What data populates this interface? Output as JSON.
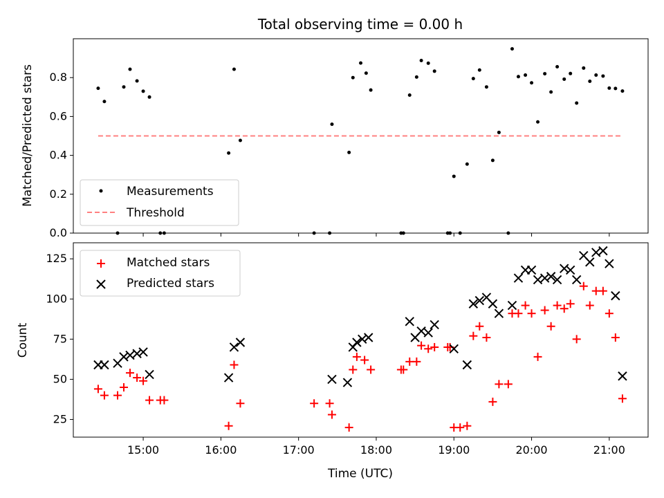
{
  "chart_data": [
    {
      "type": "scatter",
      "title": "Total observing time = 0.00 h",
      "xlabel": "",
      "ylabel": "Matched/Predicted stars",
      "xlim": [
        14.1,
        21.5
      ],
      "ylim": [
        0,
        1.0
      ],
      "yticks": [
        0.0,
        0.2,
        0.4,
        0.6,
        0.8
      ],
      "yticklabels": [
        "0.0",
        "0.2",
        "0.4",
        "0.6",
        "0.8"
      ],
      "grid": false,
      "legend_placement": "lower-left",
      "series": [
        {
          "name": "Measurements",
          "marker": "dot",
          "color": "#000000",
          "x": [
            14.42,
            14.5,
            14.67,
            14.75,
            14.83,
            14.92,
            15.0,
            15.08,
            15.22,
            15.27,
            16.1,
            16.17,
            16.25,
            17.2,
            17.4,
            17.43,
            17.65,
            17.7,
            17.8,
            17.87,
            17.93,
            18.32,
            18.35,
            18.43,
            18.52,
            18.58,
            18.67,
            18.75,
            18.92,
            18.95,
            19.0,
            19.08,
            19.17,
            19.25,
            19.33,
            19.42,
            19.5,
            19.58,
            19.7,
            19.75,
            19.83,
            19.92,
            20.0,
            20.08,
            20.17,
            20.25,
            20.33,
            20.42,
            20.5,
            20.58,
            20.67,
            20.75,
            20.83,
            20.92,
            21.0,
            21.08,
            21.17
          ],
          "y": [
            0.745,
            0.677,
            0.0,
            0.752,
            0.843,
            0.783,
            0.73,
            0.7,
            0.0,
            0.0,
            0.412,
            0.843,
            0.477,
            0.0,
            0.0,
            0.56,
            0.415,
            0.8,
            0.875,
            0.823,
            0.736,
            0.0,
            0.0,
            0.71,
            0.803,
            0.888,
            0.874,
            0.833,
            0.0,
            0.0,
            0.292,
            0.0,
            0.355,
            0.795,
            0.839,
            0.752,
            0.374,
            0.518,
            0.0,
            0.948,
            0.805,
            0.813,
            0.773,
            0.572,
            0.82,
            0.726,
            0.856,
            0.792,
            0.821,
            0.669,
            0.849,
            0.781,
            0.813,
            0.808,
            0.746,
            0.744,
            0.731
          ]
        },
        {
          "name": "Threshold",
          "marker": "dashed-line",
          "color": "#ff8080",
          "x": [
            14.42,
            21.17
          ],
          "y": [
            0.5,
            0.5
          ]
        }
      ]
    },
    {
      "type": "scatter",
      "title": "",
      "xlabel": "Time (UTC)",
      "ylabel": "Count",
      "xlim": [
        14.1,
        21.5
      ],
      "ylim": [
        14,
        135
      ],
      "xticks": [
        15,
        16,
        17,
        18,
        19,
        20,
        21
      ],
      "xticklabels": [
        "15:00",
        "16:00",
        "17:00",
        "18:00",
        "19:00",
        "20:00",
        "21:00"
      ],
      "yticks": [
        25,
        50,
        75,
        100,
        125
      ],
      "yticklabels": [
        "25",
        "50",
        "75",
        "100",
        "125"
      ],
      "grid": false,
      "legend_placement": "upper-left",
      "series": [
        {
          "name": "Matched stars",
          "marker": "plus",
          "color": "#ff0000",
          "x": [
            14.42,
            14.5,
            14.67,
            14.75,
            14.83,
            14.92,
            15.0,
            15.08,
            15.22,
            15.27,
            16.1,
            16.17,
            16.25,
            17.2,
            17.4,
            17.43,
            17.65,
            17.7,
            17.75,
            17.85,
            17.93,
            18.32,
            18.35,
            18.43,
            18.52,
            18.58,
            18.67,
            18.75,
            18.92,
            18.95,
            19.0,
            19.08,
            19.17,
            19.25,
            19.33,
            19.42,
            19.5,
            19.58,
            19.7,
            19.75,
            19.83,
            19.92,
            20.0,
            20.08,
            20.17,
            20.25,
            20.33,
            20.42,
            20.5,
            20.58,
            20.67,
            20.75,
            20.83,
            20.92,
            21.0,
            21.08,
            21.17
          ],
          "y": [
            44,
            40,
            40,
            45,
            54,
            51,
            49,
            37,
            37,
            37,
            21,
            59,
            35,
            35,
            35,
            28,
            20,
            56,
            64,
            62,
            56,
            56,
            56,
            61,
            61,
            71,
            69,
            70,
            70,
            70,
            20,
            20,
            21,
            77,
            83,
            76,
            36,
            47,
            47,
            91,
            91,
            96,
            91,
            64,
            93,
            83,
            96,
            94,
            97,
            75,
            108,
            96,
            105,
            105,
            91,
            76,
            38
          ]
        },
        {
          "name": "Predicted stars",
          "marker": "x",
          "color": "#000000",
          "x": [
            14.42,
            14.5,
            14.67,
            14.75,
            14.83,
            14.92,
            15.0,
            15.08,
            16.1,
            16.17,
            16.25,
            17.43,
            17.63,
            17.7,
            17.75,
            17.82,
            17.9,
            18.43,
            18.5,
            18.58,
            18.67,
            18.75,
            19.0,
            19.17,
            19.25,
            19.33,
            19.42,
            19.5,
            19.58,
            19.75,
            19.83,
            19.92,
            20.0,
            20.08,
            20.17,
            20.25,
            20.33,
            20.42,
            20.5,
            20.58,
            20.67,
            20.75,
            20.83,
            20.92,
            21.0,
            21.08,
            21.17
          ],
          "y": [
            59,
            59,
            60,
            64,
            65,
            66,
            67,
            53,
            51,
            70,
            73,
            50,
            48,
            70,
            73,
            75,
            76,
            86,
            76,
            80,
            79,
            84,
            69,
            59,
            97,
            99,
            101,
            97,
            91,
            96,
            113,
            118,
            118,
            112,
            113,
            114,
            112,
            119,
            118,
            112,
            127,
            123,
            129,
            130,
            122,
            102,
            52
          ]
        }
      ]
    }
  ]
}
